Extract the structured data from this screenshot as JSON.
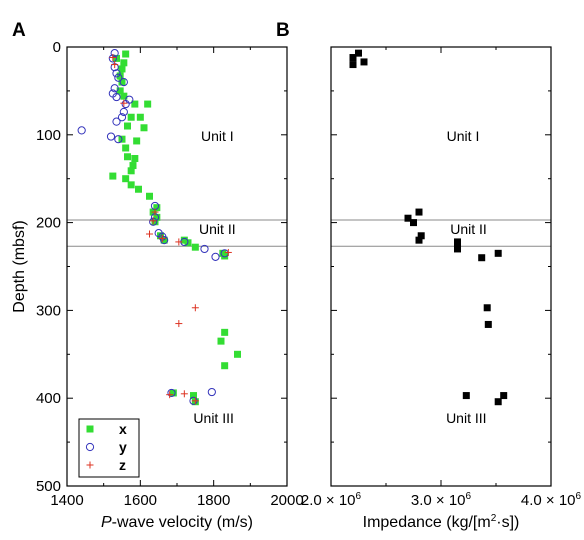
{
  "chart_data": [
    {
      "panel": "A",
      "type": "scatter",
      "title": "",
      "xlabel_italic": "P",
      "xlabel": "-wave velocity (m/s)",
      "ylabel": "Depth (mbsf)",
      "xlim": [
        1400,
        2000
      ],
      "ylim": [
        500,
        0
      ],
      "xticks": [
        1400,
        1600,
        1800,
        2000
      ],
      "yticks": [
        0,
        100,
        200,
        300,
        400,
        500
      ],
      "grid": false,
      "reference_lines_y": [
        197,
        227
      ],
      "units": [
        {
          "label": "Unit I",
          "x": 1810,
          "y": 107
        },
        {
          "label": "Unit II",
          "x": 1810,
          "y": 213
        },
        {
          "label": "Unit III",
          "x": 1800,
          "y": 428
        }
      ],
      "legend_position": "bottom-left",
      "series": [
        {
          "name": "x",
          "marker": "square",
          "color": "#33dd33",
          "points": [
            [
              1560,
              8
            ],
            [
              1535,
              13
            ],
            [
              1555,
              18
            ],
            [
              1550,
              25
            ],
            [
              1545,
              33
            ],
            [
              1550,
              40
            ],
            [
              1545,
              50
            ],
            [
              1555,
              56
            ],
            [
              1585,
              65
            ],
            [
              1620,
              65
            ],
            [
              1575,
              80
            ],
            [
              1600,
              80
            ],
            [
              1565,
              90
            ],
            [
              1610,
              92
            ],
            [
              1550,
              105
            ],
            [
              1590,
              107
            ],
            [
              1560,
              115
            ],
            [
              1565,
              125
            ],
            [
              1585,
              127
            ],
            [
              1580,
              135
            ],
            [
              1575,
              141
            ],
            [
              1525,
              147
            ],
            [
              1560,
              150
            ],
            [
              1575,
              157
            ],
            [
              1595,
              162
            ],
            [
              1625,
              170
            ],
            [
              1645,
              183
            ],
            [
              1635,
              188
            ],
            [
              1645,
              194
            ],
            [
              1640,
              199
            ],
            [
              1655,
              215
            ],
            [
              1665,
              220
            ],
            [
              1720,
              220
            ],
            [
              1730,
              223
            ],
            [
              1750,
              228
            ],
            [
              1825,
              235
            ],
            [
              1830,
              238
            ],
            [
              1830,
              325
            ],
            [
              1820,
              335
            ],
            [
              1865,
              350
            ],
            [
              1830,
              363
            ],
            [
              1690,
              394
            ],
            [
              1745,
              397
            ],
            [
              1750,
              404
            ]
          ]
        },
        {
          "name": "y",
          "marker": "circle",
          "color": "#3333bb",
          "points": [
            [
              1530,
              7
            ],
            [
              1525,
              13
            ],
            [
              1530,
              23
            ],
            [
              1535,
              30
            ],
            [
              1540,
              35
            ],
            [
              1555,
              40
            ],
            [
              1530,
              47
            ],
            [
              1525,
              53
            ],
            [
              1535,
              57
            ],
            [
              1570,
              60
            ],
            [
              1560,
              65
            ],
            [
              1555,
              74
            ],
            [
              1550,
              80
            ],
            [
              1535,
              85
            ],
            [
              1440,
              95
            ],
            [
              1520,
              102
            ],
            [
              1540,
              105
            ],
            [
              1640,
              181
            ],
            [
              1640,
              194
            ],
            [
              1635,
              199
            ],
            [
              1650,
              212
            ],
            [
              1660,
              216
            ],
            [
              1665,
              220
            ],
            [
              1720,
              222
            ],
            [
              1775,
              230
            ],
            [
              1805,
              239
            ],
            [
              1830,
              235
            ],
            [
              1685,
              394
            ],
            [
              1795,
              393
            ],
            [
              1745,
              403
            ]
          ]
        },
        {
          "name": "z",
          "marker": "plus",
          "color": "#dd3322",
          "points": [
            [
              1525,
              12
            ],
            [
              1530,
              20
            ],
            [
              1555,
              64
            ],
            [
              1640,
              188
            ],
            [
              1635,
              198
            ],
            [
              1625,
              213
            ],
            [
              1660,
              218
            ],
            [
              1705,
              222
            ],
            [
              1840,
              234
            ],
            [
              1750,
              297
            ],
            [
              1705,
              315
            ],
            [
              1720,
              395
            ],
            [
              1680,
              396
            ],
            [
              1750,
              403
            ]
          ]
        }
      ]
    },
    {
      "panel": "B",
      "type": "scatter",
      "title": "",
      "xlabel": "Impedance (kg/[m",
      "xlabel_sup": "2",
      "xlabel_tail": "·s])",
      "ylabel": "",
      "xlim_1e6": [
        2.0,
        4.0
      ],
      "ylim": [
        500,
        0
      ],
      "xticks": [
        {
          "value": 2.0,
          "mantissa": "2.0 × 10",
          "exp": "6"
        },
        {
          "value": 3.0,
          "mantissa": "3.0 × 10",
          "exp": "6"
        },
        {
          "value": 4.0,
          "mantissa": "4.0 × 10",
          "exp": "6"
        }
      ],
      "grid": false,
      "reference_lines_y": [
        197,
        227
      ],
      "units": [
        {
          "label": "Unit I",
          "x": 3.2,
          "y": 107
        },
        {
          "label": "Unit II",
          "x": 3.25,
          "y": 213
        },
        {
          "label": "Unit III",
          "x": 3.23,
          "y": 428
        }
      ],
      "series": [
        {
          "name": "",
          "marker": "square",
          "color": "#000000",
          "points_1e6": [
            [
              2.25,
              7
            ],
            [
              2.2,
              12
            ],
            [
              2.3,
              17
            ],
            [
              2.2,
              20
            ],
            [
              2.8,
              188
            ],
            [
              2.7,
              195
            ],
            [
              2.75,
              200
            ],
            [
              2.82,
              215
            ],
            [
              2.8,
              220
            ],
            [
              3.15,
              222
            ],
            [
              3.15,
              227
            ],
            [
              3.15,
              230
            ],
            [
              3.37,
              240
            ],
            [
              3.52,
              235
            ],
            [
              3.42,
              297
            ],
            [
              3.43,
              316
            ],
            [
              3.23,
              397
            ],
            [
              3.57,
              397
            ],
            [
              3.52,
              404
            ]
          ]
        }
      ]
    }
  ]
}
